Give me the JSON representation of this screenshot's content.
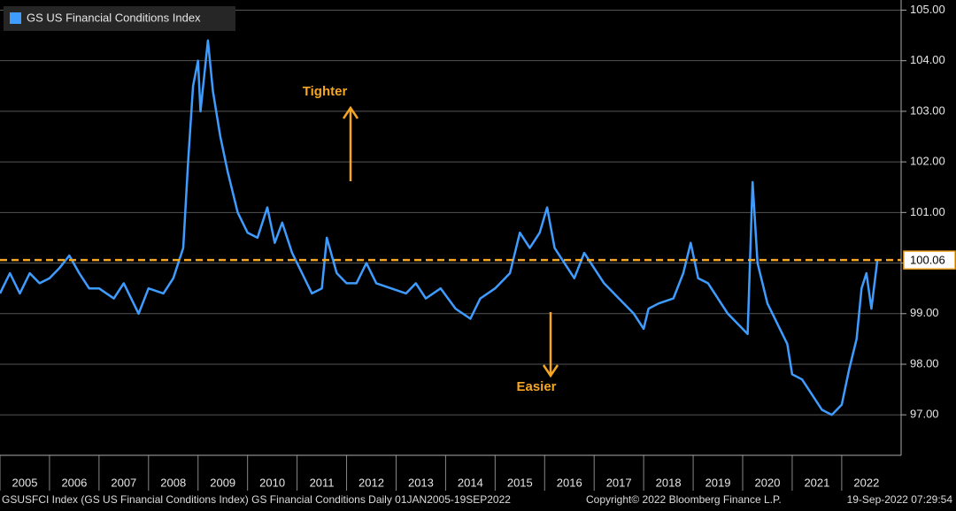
{
  "chart_data": {
    "type": "line",
    "legend": "GS US Financial Conditions Index",
    "x": [
      2005.0,
      2005.2,
      2005.4,
      2005.6,
      2005.8,
      2006.0,
      2006.2,
      2006.4,
      2006.6,
      2006.8,
      2007.0,
      2007.3,
      2007.5,
      2007.8,
      2008.0,
      2008.3,
      2008.5,
      2008.7,
      2008.8,
      2008.9,
      2009.0,
      2009.05,
      2009.2,
      2009.3,
      2009.45,
      2009.6,
      2009.8,
      2010.0,
      2010.2,
      2010.4,
      2010.55,
      2010.7,
      2010.9,
      2011.1,
      2011.3,
      2011.5,
      2011.6,
      2011.8,
      2012.0,
      2012.2,
      2012.4,
      2012.6,
      2012.9,
      2013.2,
      2013.4,
      2013.6,
      2013.9,
      2014.2,
      2014.5,
      2014.7,
      2015.0,
      2015.3,
      2015.5,
      2015.7,
      2015.9,
      2016.05,
      2016.2,
      2016.4,
      2016.6,
      2016.8,
      2017.0,
      2017.2,
      2017.5,
      2017.8,
      2018.0,
      2018.1,
      2018.3,
      2018.6,
      2018.8,
      2018.95,
      2019.1,
      2019.3,
      2019.5,
      2019.7,
      2019.9,
      2020.1,
      2020.2,
      2020.3,
      2020.5,
      2020.7,
      2020.9,
      2021.0,
      2021.2,
      2021.4,
      2021.6,
      2021.8,
      2022.0,
      2022.15,
      2022.3,
      2022.4,
      2022.5,
      2022.6,
      2022.72
    ],
    "series": [
      {
        "name": "GS US Financial Conditions Index",
        "color": "#3f9cff",
        "values": [
          99.4,
          99.8,
          99.4,
          99.8,
          99.6,
          99.7,
          99.9,
          100.15,
          99.8,
          99.5,
          99.5,
          99.3,
          99.6,
          99.0,
          99.5,
          99.4,
          99.7,
          100.3,
          102.0,
          103.5,
          104.0,
          103.0,
          104.4,
          103.4,
          102.5,
          101.8,
          101.0,
          100.6,
          100.5,
          101.1,
          100.4,
          100.8,
          100.2,
          99.8,
          99.4,
          99.5,
          100.5,
          99.8,
          99.6,
          99.6,
          100.0,
          99.6,
          99.5,
          99.4,
          99.6,
          99.3,
          99.5,
          99.1,
          98.9,
          99.3,
          99.5,
          99.8,
          100.6,
          100.3,
          100.6,
          101.1,
          100.3,
          100.0,
          99.7,
          100.2,
          99.9,
          99.6,
          99.3,
          99.0,
          98.7,
          99.1,
          99.2,
          99.3,
          99.8,
          100.4,
          99.7,
          99.6,
          99.3,
          99.0,
          98.8,
          98.6,
          101.6,
          100.0,
          99.2,
          98.8,
          98.4,
          97.8,
          97.7,
          97.4,
          97.1,
          97.0,
          97.2,
          97.9,
          98.5,
          99.5,
          99.8,
          99.1,
          100.06
        ]
      }
    ],
    "reference_value": 100.06,
    "reference_color": "#f5a623",
    "annotations": [
      "Tighter",
      "Easier"
    ],
    "xlim": [
      2005,
      2023.2
    ],
    "xticks": [
      {
        "value": 2005,
        "label": "2005"
      },
      {
        "value": 2006,
        "label": "2006"
      },
      {
        "value": 2007,
        "label": "2007"
      },
      {
        "value": 2008,
        "label": "2008"
      },
      {
        "value": 2009,
        "label": "2009"
      },
      {
        "value": 2010,
        "label": "2010"
      },
      {
        "value": 2011,
        "label": "2011"
      },
      {
        "value": 2012,
        "label": "2012"
      },
      {
        "value": 2013,
        "label": "2013"
      },
      {
        "value": 2014,
        "label": "2014"
      },
      {
        "value": 2015,
        "label": "2015"
      },
      {
        "value": 2016,
        "label": "2016"
      },
      {
        "value": 2017,
        "label": "2017"
      },
      {
        "value": 2018,
        "label": "2018"
      },
      {
        "value": 2019,
        "label": "2019"
      },
      {
        "value": 2020,
        "label": "2020"
      },
      {
        "value": 2021,
        "label": "2021"
      },
      {
        "value": 2022,
        "label": "2022"
      }
    ],
    "ylim": [
      96.2,
      105.2
    ],
    "yticks": [
      {
        "value": 97,
        "label": "97.00"
      },
      {
        "value": 98,
        "label": "98.00"
      },
      {
        "value": 99,
        "label": "99.00"
      },
      {
        "value": 100,
        "label": "100.00"
      },
      {
        "value": 101,
        "label": "101.00"
      },
      {
        "value": 102,
        "label": "102.00"
      },
      {
        "value": 103,
        "label": "103.00"
      },
      {
        "value": 104,
        "label": "104.00"
      },
      {
        "value": 105,
        "label": "105.00"
      }
    ],
    "grid": true,
    "footer": [
      "GSUSFCI Index (GS US Financial Conditions Index) GS Financial Conditions  Daily 01JAN2005-19SEP2022",
      "Copyright© 2022 Bloomberg Finance L.P.",
      "19-Sep-2022 07:29:54"
    ]
  }
}
